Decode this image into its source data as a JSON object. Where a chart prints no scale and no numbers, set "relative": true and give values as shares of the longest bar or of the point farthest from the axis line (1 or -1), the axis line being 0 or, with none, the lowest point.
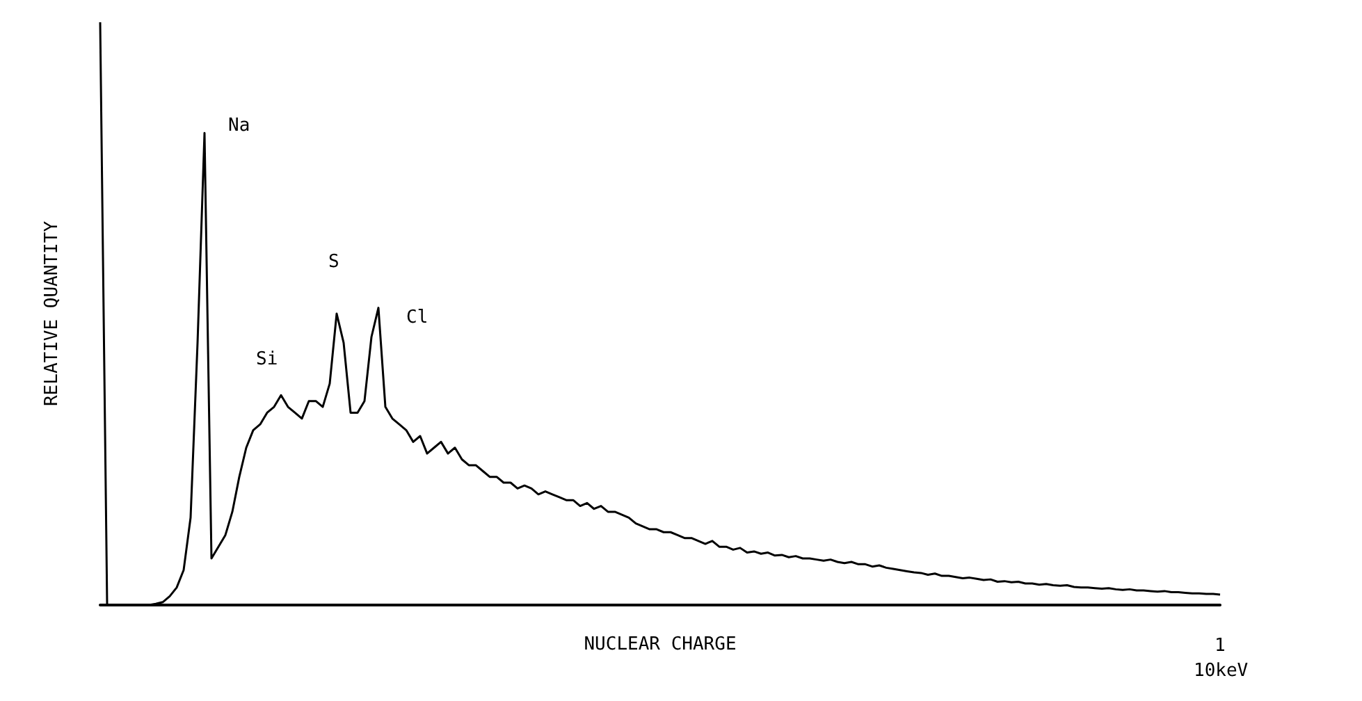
{
  "chart_data": {
    "type": "line",
    "relative": true,
    "xlabel": "NUCLEAR CHARGE",
    "ylabel": "RELATIVE QUANTITY",
    "color": "#000000",
    "marker": "none",
    "line_style": "solid",
    "grid": false,
    "categories": [
      null,
      null,
      null,
      null,
      null,
      null,
      null,
      null,
      null,
      null,
      null,
      null,
      null,
      null,
      null,
      null,
      null,
      null,
      null,
      null,
      null,
      null,
      null,
      null,
      null,
      null,
      null,
      null,
      null,
      null,
      null,
      null,
      null,
      null,
      null,
      null,
      null,
      null,
      null,
      null,
      null,
      null,
      null,
      null,
      null,
      null,
      null,
      null,
      null,
      null,
      null,
      null,
      null,
      null,
      null,
      null,
      null,
      null,
      null,
      null,
      null,
      null,
      null,
      null,
      null,
      null,
      null,
      null,
      null,
      null,
      null,
      null,
      null,
      null,
      null,
      null,
      null,
      null,
      null,
      null,
      null,
      null,
      null,
      null,
      null,
      null,
      null,
      null,
      null,
      null,
      null,
      null,
      null,
      null,
      null,
      null,
      null,
      null,
      null,
      null,
      null,
      null,
      null,
      null,
      null,
      null,
      null,
      null,
      null,
      null,
      null,
      null,
      null,
      null,
      null,
      null,
      null,
      null,
      null,
      null,
      null,
      null,
      null,
      null,
      null,
      null,
      null,
      null,
      null,
      null,
      null,
      null,
      null,
      null,
      null,
      null,
      null,
      null,
      null,
      null,
      null,
      null,
      null,
      null,
      null,
      null,
      null,
      null,
      null,
      null,
      null,
      null,
      null,
      null,
      null,
      null,
      null,
      null,
      null,
      null,
      null,
      null
    ],
    "values": [
      1.0,
      0,
      0,
      0,
      0,
      0,
      0,
      0,
      0.002,
      0.005,
      0.015,
      0.03,
      0.06,
      0.15,
      0.45,
      0.81,
      0.08,
      0.1,
      0.12,
      0.16,
      0.22,
      0.27,
      0.3,
      0.31,
      0.33,
      0.34,
      0.36,
      0.34,
      0.33,
      0.32,
      0.35,
      0.35,
      0.34,
      0.38,
      0.5,
      0.45,
      0.33,
      0.33,
      0.35,
      0.46,
      0.51,
      0.34,
      0.32,
      0.31,
      0.3,
      0.28,
      0.29,
      0.26,
      0.27,
      0.28,
      0.26,
      0.27,
      0.25,
      0.24,
      0.24,
      0.23,
      0.22,
      0.22,
      0.21,
      0.21,
      0.2,
      0.205,
      0.2,
      0.19,
      0.195,
      0.19,
      0.185,
      0.18,
      0.18,
      0.17,
      0.175,
      0.165,
      0.17,
      0.16,
      0.16,
      0.155,
      0.15,
      0.14,
      0.135,
      0.13,
      0.13,
      0.125,
      0.125,
      0.12,
      0.115,
      0.115,
      0.11,
      0.105,
      0.11,
      0.1,
      0.1,
      0.095,
      0.098,
      0.09,
      0.092,
      0.088,
      0.09,
      0.085,
      0.086,
      0.082,
      0.084,
      0.08,
      0.08,
      0.078,
      0.076,
      0.078,
      0.074,
      0.072,
      0.074,
      0.07,
      0.07,
      0.066,
      0.068,
      0.064,
      0.062,
      0.06,
      0.058,
      0.056,
      0.055,
      0.052,
      0.054,
      0.05,
      0.05,
      0.048,
      0.046,
      0.047,
      0.045,
      0.043,
      0.044,
      0.04,
      0.041,
      0.039,
      0.04,
      0.037,
      0.037,
      0.035,
      0.036,
      0.034,
      0.033,
      0.034,
      0.031,
      0.03,
      0.03,
      0.029,
      0.028,
      0.029,
      0.027,
      0.026,
      0.027,
      0.025,
      0.025,
      0.024,
      0.023,
      0.024,
      0.022,
      0.022,
      0.021,
      0.02,
      0.02,
      0.019,
      0.019,
      0.018
    ],
    "annotations": [
      "Na",
      "Si",
      "S",
      "Cl",
      "1",
      "10keV"
    ]
  }
}
